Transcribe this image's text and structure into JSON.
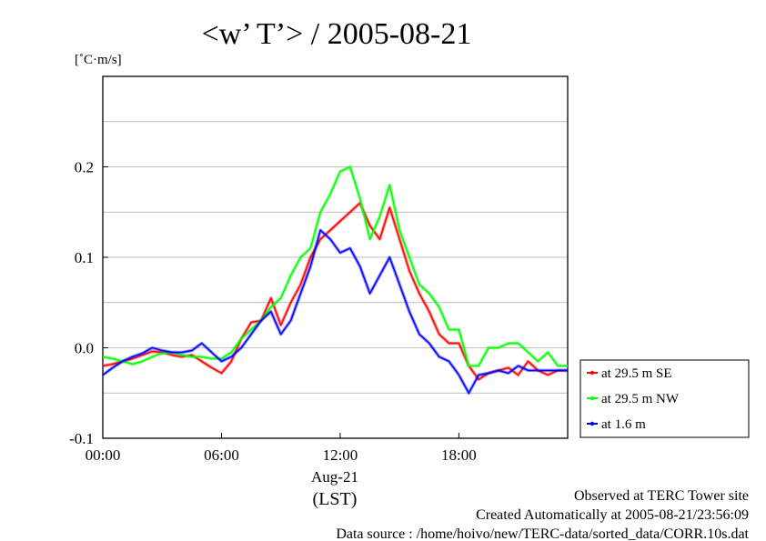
{
  "chart_data": {
    "type": "line",
    "title": "<w’ T’> / 2005-08-21",
    "ylabel": "[˚C·m/s]",
    "xlabel_date": "Aug-21",
    "xlabel_tz": "(LST)",
    "xlim": [
      0,
      23.5
    ],
    "ylim": [
      -0.1,
      0.3
    ],
    "y_ticks": [
      -0.1,
      0.0,
      0.1,
      0.2
    ],
    "y_tick_labels": [
      "-0.1",
      "0.0",
      "0.1",
      "0.2"
    ],
    "y_gridlines": [
      -0.05,
      0.0,
      0.05,
      0.1,
      0.15,
      0.2,
      0.25
    ],
    "x_ticks": [
      0,
      6,
      12,
      18
    ],
    "x_tick_labels": [
      "00:00",
      "06:00",
      "12:00",
      "18:00"
    ],
    "grid": true,
    "legend_position": "right-lower-outside",
    "series": [
      {
        "name": "at 29.5 m SE",
        "color": "#ff0000",
        "x": [
          0,
          0.5,
          1,
          1.5,
          2,
          2.5,
          3,
          3.5,
          4,
          4.5,
          5,
          5.5,
          6,
          6.5,
          7,
          7.5,
          8,
          8.5,
          9,
          9.5,
          10,
          10.5,
          11,
          11.5,
          12,
          12.5,
          13,
          13.5,
          14,
          14.5,
          15,
          15.5,
          16,
          16.5,
          17,
          17.5,
          18,
          18.5,
          19,
          19.5,
          20,
          20.5,
          21,
          21.5,
          22,
          22.5,
          23,
          23.5
        ],
        "y": [
          -0.02,
          -0.018,
          -0.015,
          -0.012,
          -0.008,
          -0.004,
          -0.005,
          -0.008,
          -0.01,
          -0.008,
          -0.015,
          -0.022,
          -0.028,
          -0.015,
          0.01,
          0.028,
          0.03,
          0.055,
          0.025,
          0.05,
          0.07,
          0.1,
          0.12,
          0.13,
          0.14,
          0.15,
          0.16,
          0.135,
          0.12,
          0.155,
          0.12,
          0.085,
          0.06,
          0.04,
          0.015,
          0.005,
          0.005,
          -0.02,
          -0.035,
          -0.028,
          -0.025,
          -0.022,
          -0.03,
          -0.015,
          -0.025,
          -0.03,
          -0.025,
          -0.025
        ]
      },
      {
        "name": "at 29.5 m NW",
        "color": "#00ff00",
        "x": [
          0,
          0.5,
          1,
          1.5,
          2,
          2.5,
          3,
          3.5,
          4,
          4.5,
          5,
          5.5,
          6,
          6.5,
          7,
          7.5,
          8,
          8.5,
          9,
          9.5,
          10,
          10.5,
          11,
          11.5,
          12,
          12.5,
          13,
          13.5,
          14,
          14.5,
          15,
          15.5,
          16,
          16.5,
          17,
          17.5,
          18,
          18.5,
          19,
          19.5,
          20,
          20.5,
          21,
          21.5,
          22,
          22.5,
          23,
          23.5
        ],
        "y": [
          -0.01,
          -0.012,
          -0.015,
          -0.018,
          -0.015,
          -0.01,
          -0.006,
          -0.005,
          -0.008,
          -0.01,
          -0.01,
          -0.012,
          -0.012,
          -0.005,
          0.01,
          0.02,
          0.03,
          0.045,
          0.055,
          0.08,
          0.1,
          0.11,
          0.15,
          0.17,
          0.195,
          0.2,
          0.165,
          0.12,
          0.145,
          0.18,
          0.13,
          0.1,
          0.07,
          0.06,
          0.045,
          0.02,
          0.02,
          -0.02,
          -0.02,
          0.0,
          0.0,
          0.005,
          0.005,
          -0.005,
          -0.015,
          -0.005,
          -0.02,
          -0.02
        ]
      },
      {
        "name": "at 1.6 m",
        "color": "#0000ff",
        "x": [
          0,
          0.5,
          1,
          1.5,
          2,
          2.5,
          3,
          3.5,
          4,
          4.5,
          5,
          5.5,
          6,
          6.5,
          7,
          7.5,
          8,
          8.5,
          9,
          9.5,
          10,
          10.5,
          11,
          11.5,
          12,
          12.5,
          13,
          13.5,
          14,
          14.5,
          15,
          15.5,
          16,
          16.5,
          17,
          17.5,
          18,
          18.5,
          19,
          19.5,
          20,
          20.5,
          21,
          21.5,
          22,
          22.5,
          23,
          23.5
        ],
        "y": [
          -0.03,
          -0.022,
          -0.015,
          -0.01,
          -0.006,
          0.0,
          -0.003,
          -0.005,
          -0.005,
          -0.003,
          0.005,
          -0.005,
          -0.015,
          -0.01,
          0.0,
          0.015,
          0.03,
          0.04,
          0.015,
          0.03,
          0.06,
          0.09,
          0.13,
          0.12,
          0.105,
          0.11,
          0.09,
          0.06,
          0.08,
          0.1,
          0.07,
          0.04,
          0.015,
          0.005,
          -0.01,
          -0.015,
          -0.03,
          -0.05,
          -0.03,
          -0.028,
          -0.025,
          -0.028,
          -0.02,
          -0.025,
          -0.025,
          -0.025,
          -0.025,
          -0.025
        ]
      }
    ]
  },
  "footer": {
    "line1": "Observed at TERC Tower site",
    "line2": "Created Automatically at 2005-08-21/23:56:09",
    "line3": "Data source : /home/hoivo/new/TERC-data/sorted_data/CORR.10s.dat"
  }
}
